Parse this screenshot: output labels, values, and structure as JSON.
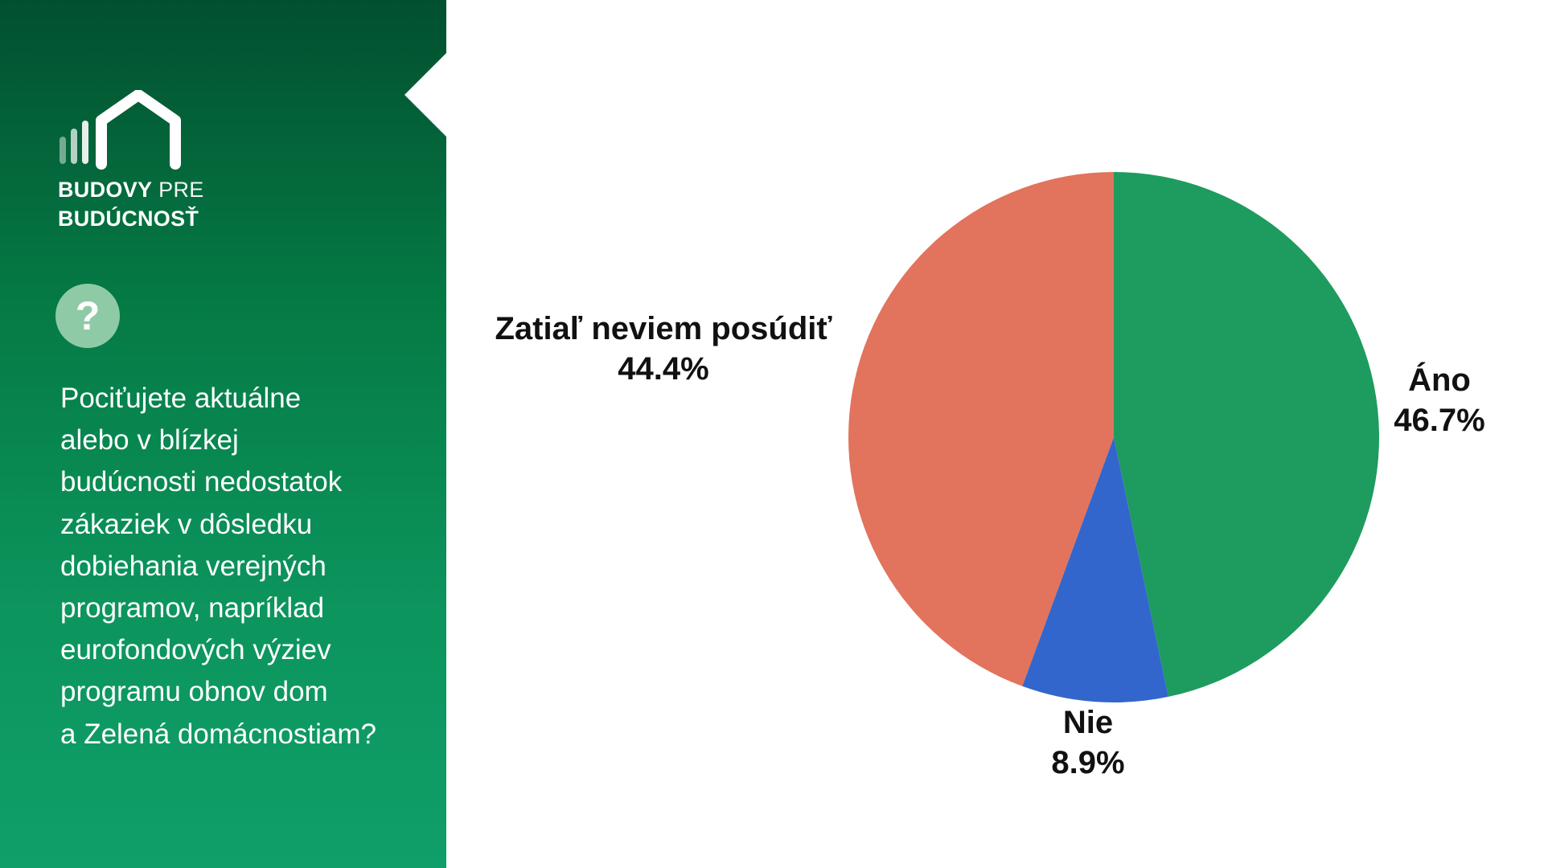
{
  "brand": {
    "line1_bold": "BUDOVY",
    "line1_light": "PRE",
    "line2": "BUDÚCNOSŤ"
  },
  "question_icon": "question-mark-icon",
  "question_mark": "?",
  "question_text": "Pociťujete aktuálne\nalebo v blízkej\nbudúcnosti nedostatok\nzákaziek v dôsledku\ndobiehania verejných\nprogramov, napríklad\neurofondových výziev\nprogramu obnov dom\na Zelená domácnostiam?",
  "colors": {
    "sidebar_top": "#02502f",
    "sidebar_bottom": "#0f9f68",
    "ano": "#1e9b5f",
    "nie": "#3366cc",
    "zatial": "#e2735c"
  },
  "chart_data": {
    "type": "pie",
    "start_angle_deg": 0,
    "direction": "clockwise",
    "slices": [
      {
        "label": "Áno",
        "value": 46.7,
        "value_label": "46.7%",
        "color": "#1e9b5f"
      },
      {
        "label": "Nie",
        "value": 8.9,
        "value_label": "8.9%",
        "color": "#3366cc"
      },
      {
        "label": "Zatiaľ neviem posúdiť",
        "value": 44.4,
        "value_label": "44.4%",
        "color": "#e2735c"
      }
    ]
  }
}
